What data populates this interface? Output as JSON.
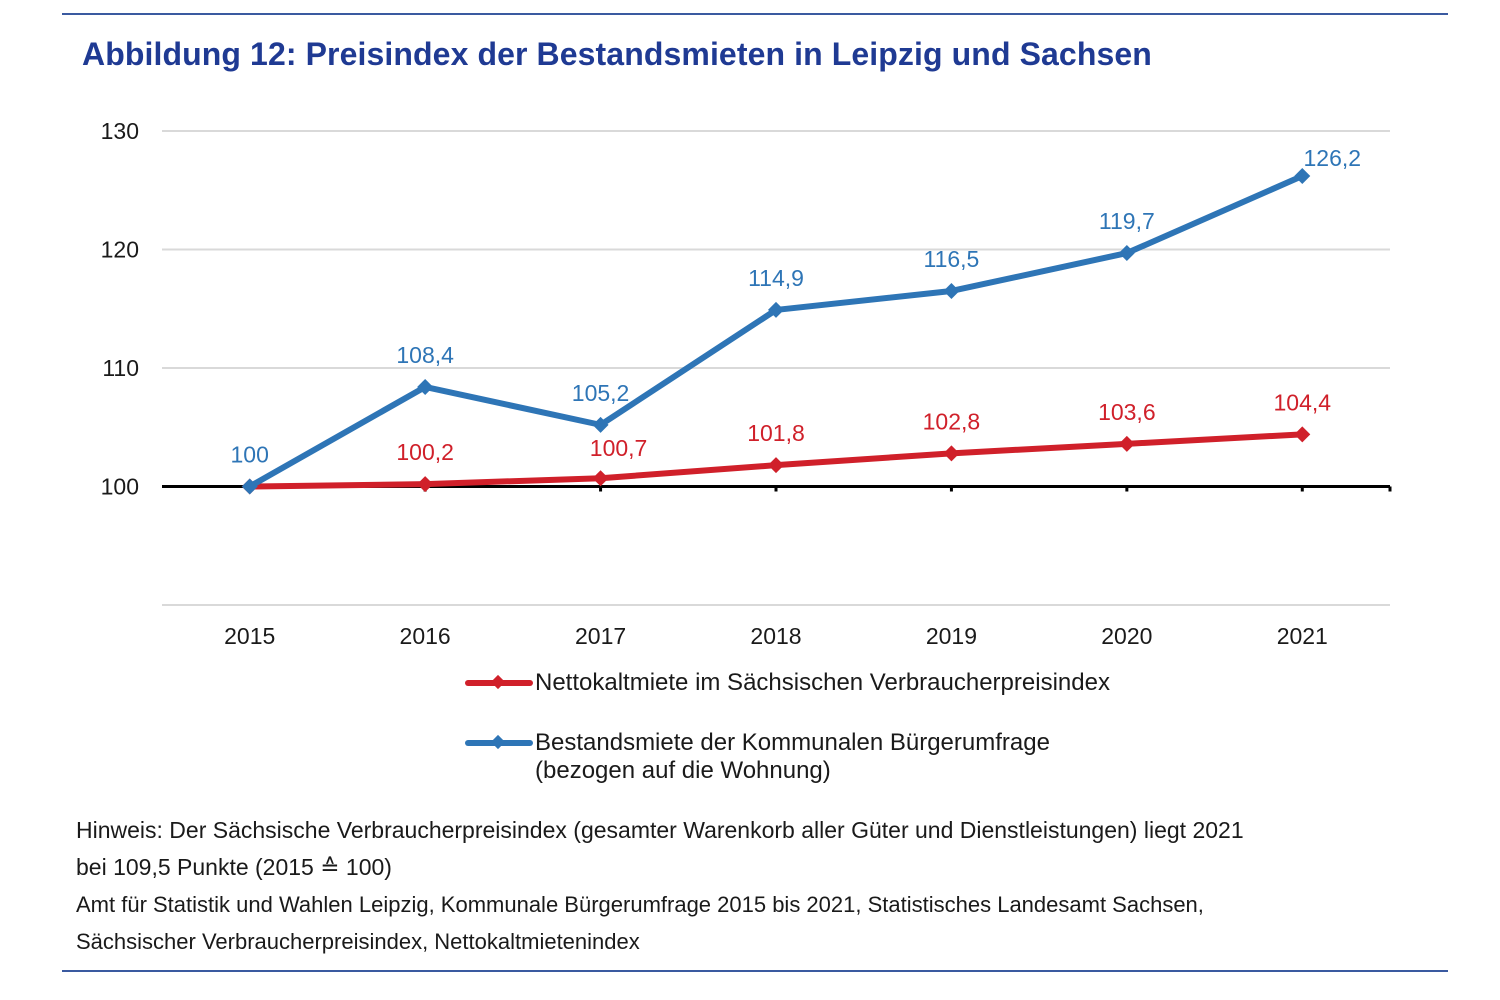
{
  "figure": {
    "title": "Abbildung 12: Preisindex der Bestandsmieten in Leipzig und Sachsen"
  },
  "colors": {
    "title": "#1f3a93",
    "rule": "#3a5aa0",
    "series_red": "#d0202a",
    "series_blue": "#2e75b6",
    "grid": "#d9d9d9",
    "baseline": "#000000"
  },
  "chart_data": {
    "type": "line",
    "title": "Abbildung 12: Preisindex der Bestandsmieten in Leipzig und Sachsen",
    "xlabel": "",
    "ylabel": "",
    "categories": [
      "2015",
      "2016",
      "2017",
      "2018",
      "2019",
      "2020",
      "2021"
    ],
    "y_ticks": [
      "100",
      "110",
      "120",
      "130"
    ],
    "ylim": [
      90,
      130
    ],
    "grid": true,
    "baseline": 100,
    "legend_position": "bottom",
    "series": [
      {
        "name": "Nettokaltmiete im Sächsischen Verbraucherpreisindex",
        "color": "#d0202a",
        "values": [
          100,
          100.2,
          100.7,
          101.8,
          102.8,
          103.6,
          104.4
        ],
        "labels": [
          "",
          "100,2",
          "100,7",
          "101,8",
          "102,8",
          "103,6",
          "104,4"
        ]
      },
      {
        "name": "Bestandsmiete der Kommunalen Bürgerumfrage (bezogen auf die Wohnung)",
        "color": "#2e75b6",
        "values": [
          100,
          108.4,
          105.2,
          114.9,
          116.5,
          119.7,
          126.2
        ],
        "labels": [
          "100",
          "108,4",
          "105,2",
          "114,9",
          "116,5",
          "119,7",
          "126,2"
        ]
      }
    ]
  },
  "legend": {
    "items": [
      {
        "label_lines": [
          "Nettokaltmiete im Sächsischen Verbraucherpreisindex"
        ]
      },
      {
        "label_lines": [
          "Bestandsmiete der Kommunalen Bürgerumfrage",
          "(bezogen auf die Wohnung)"
        ]
      }
    ]
  },
  "notes": {
    "hint_line1": "Hinweis: Der Sächsische Verbraucherpreisindex (gesamter Warenkorb aller Güter und Dienstleistungen) liegt 2021",
    "hint_line2": "bei 109,5 Punkte (2015 ≙ 100)",
    "source_line1": "Amt für Statistik und Wahlen Leipzig, Kommunale Bürgerumfrage 2015 bis 2021, Statistisches Landesamt Sachsen,",
    "source_line2": "Sächsischer Verbraucherpreisindex, Nettokaltmietenindex"
  }
}
